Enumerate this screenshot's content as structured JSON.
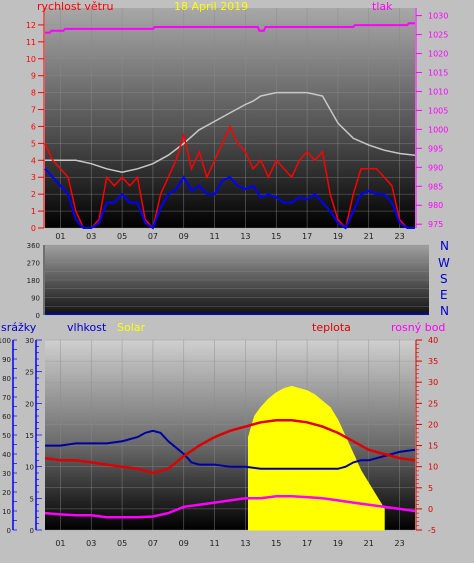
{
  "colors": {
    "background": "#c0c0c0",
    "wind": "#ff0000",
    "wind_avg": "#0000ff",
    "pressure": "#ff00ff",
    "humidity": "#0000a0",
    "solar": "#ffff00",
    "temperature": "#dd0000",
    "dewpoint": "#ff00ff",
    "rain_axis": "#0000ff",
    "grey_series": "#c8c8c8",
    "date": "#ffff00"
  },
  "top_chart": {
    "left_title": "rychlost větru",
    "date": "18 April 2019",
    "right_title": "tlak"
  },
  "mid_chart": {
    "direction_labels": [
      "N",
      "W",
      "S",
      "E",
      "N"
    ]
  },
  "bottom_chart": {
    "rain_label": "srážky",
    "humidity_label": "vlhkost",
    "solar_label": "Solar",
    "temperature_label": "teplota",
    "dewpoint_label": "rosný bod"
  },
  "chart_data": [
    {
      "type": "line",
      "x_ticks": [
        "01",
        "03",
        "05",
        "07",
        "09",
        "11",
        "13",
        "15",
        "17",
        "19",
        "21",
        "23"
      ],
      "xlim": [
        0,
        24
      ],
      "ylim": [
        0,
        13
      ],
      "y_ticks": [
        0,
        1,
        2,
        3,
        4,
        5,
        6,
        7,
        8,
        9,
        10,
        11,
        12
      ],
      "y2lim": [
        974,
        1032
      ],
      "y2_ticks": [
        975,
        980,
        985,
        990,
        995,
        1000,
        1005,
        1010,
        1015,
        1020,
        1025,
        1030
      ],
      "series": [
        {
          "name": "rychlost větru",
          "axis": "left",
          "x": [
            0,
            0.5,
            1,
            1.5,
            2,
            2.5,
            3,
            3.5,
            4,
            4.5,
            5,
            5.5,
            6,
            6.5,
            7,
            7.5,
            8,
            8.5,
            9,
            9.5,
            10,
            10.5,
            11,
            11.5,
            12,
            12.5,
            13,
            13.5,
            14,
            14.5,
            15,
            15.5,
            16,
            16.5,
            17,
            17.5,
            18,
            18.5,
            19,
            19.5,
            20,
            20.5,
            21,
            21.5,
            22,
            22.5,
            23,
            23.5,
            24
          ],
          "values": [
            5,
            4,
            3.5,
            3,
            1,
            0,
            0,
            0.5,
            3,
            2.5,
            3,
            2.5,
            3,
            0.5,
            0,
            2,
            3,
            4,
            5.5,
            3.5,
            4.5,
            3,
            4,
            5,
            6,
            5,
            4.5,
            3.5,
            4,
            3,
            4,
            3.5,
            3,
            4,
            4.5,
            4,
            4.5,
            2,
            0.5,
            0,
            2,
            3.5,
            3.5,
            3.5,
            3,
            2.5,
            0.5,
            0,
            0
          ]
        },
        {
          "name": "",
          "axis": "left",
          "x": [
            0,
            0.5,
            1,
            1.5,
            2,
            2.5,
            3,
            3.5,
            4,
            4.5,
            5,
            5.5,
            6,
            6.5,
            7,
            7.5,
            8,
            8.5,
            9,
            9.5,
            10,
            10.5,
            11,
            11.5,
            12,
            12.5,
            13,
            13.5,
            14,
            14.5,
            15,
            15.5,
            16,
            16.5,
            17,
            17.5,
            18,
            18.5,
            19,
            19.5,
            20,
            20.5,
            21,
            21.5,
            22,
            22.5,
            23,
            23.5,
            24
          ],
          "values": [
            3.5,
            3,
            2.5,
            2,
            0.5,
            0,
            0,
            0.3,
            1.5,
            1.5,
            2,
            1.5,
            1.5,
            0.3,
            0,
            1.2,
            2,
            2.3,
            3,
            2.2,
            2.5,
            2,
            2,
            2.8,
            3,
            2.5,
            2.3,
            2.5,
            1.8,
            2,
            1.8,
            1.5,
            1.5,
            1.8,
            1.7,
            2,
            1.5,
            1,
            0.3,
            0,
            1,
            2,
            2.2,
            2,
            2,
            1.5,
            0.3,
            0,
            0
          ]
        },
        {
          "name": "",
          "axis": "left",
          "x": [
            0,
            1,
            2,
            3,
            4,
            5,
            6,
            7,
            8,
            9,
            10,
            11,
            12,
            13,
            13.5,
            14,
            15,
            16,
            17,
            18,
            18.5,
            19,
            20,
            21,
            22,
            23,
            24
          ],
          "values": [
            4,
            4,
            4,
            3.8,
            3.5,
            3.3,
            3.5,
            3.8,
            4.3,
            5,
            5.8,
            6.3,
            6.8,
            7.3,
            7.5,
            7.8,
            8,
            8,
            8,
            7.8,
            7,
            6.2,
            5.3,
            4.9,
            4.6,
            4.4,
            4.3
          ]
        },
        {
          "name": "tlak",
          "axis": "right",
          "x": [
            0,
            0.3,
            0.4,
            1.2,
            1.3,
            7,
            7.1,
            13.8,
            13.9,
            14.2,
            14.3,
            20,
            20.1,
            23.5,
            23.6,
            24
          ],
          "values": [
            1025.5,
            1025.5,
            1026,
            1026,
            1026.5,
            1026.5,
            1027,
            1027,
            1026,
            1026,
            1027,
            1027,
            1027.5,
            1027.5,
            1028,
            1028
          ]
        }
      ]
    },
    {
      "type": "line",
      "x_ticks": [],
      "xlim": [
        0,
        24
      ],
      "ylim": [
        0,
        360
      ],
      "y_ticks": [
        0,
        45,
        90,
        135,
        180,
        225,
        270,
        315,
        360
      ],
      "y_tick_labels": [
        "0",
        "",
        "90",
        "",
        "180",
        "",
        "270",
        "",
        "360"
      ]
    },
    {
      "type": "line",
      "x_ticks": [
        "01",
        "03",
        "05",
        "07",
        "09",
        "11",
        "13",
        "15",
        "17",
        "19",
        "21",
        "23"
      ],
      "xlim": [
        0,
        24
      ],
      "ylim": [
        -5,
        40
      ],
      "y_ticks": [
        -5,
        0,
        5,
        10,
        15,
        20,
        25,
        30,
        35,
        40
      ],
      "y2_label_ticks": [
        0,
        5,
        10,
        15,
        20,
        25,
        30,
        35,
        40,
        45,
        50,
        55,
        60,
        65,
        70,
        75,
        80,
        85,
        90,
        95,
        100
      ],
      "y2_tick_labels": [
        "0",
        "10",
        "20",
        "30",
        "40",
        "50",
        "60",
        "70",
        "80",
        "90",
        "100"
      ],
      "y3_tick_labels": [
        "0",
        "5",
        "10",
        "15",
        "20",
        "25",
        "30"
      ],
      "series": [
        {
          "name": "vlhkost",
          "axis": "right",
          "x": [
            0,
            1,
            2,
            3,
            4,
            5,
            6,
            6.5,
            7,
            7.5,
            8,
            9,
            9.5,
            10,
            11,
            12,
            13,
            14,
            15,
            16,
            17,
            18,
            19,
            19.5,
            20,
            20.5,
            21,
            22,
            23,
            24
          ],
          "values": [
            15,
            15,
            15.5,
            15.5,
            15.5,
            16,
            17,
            18,
            18.5,
            18,
            16,
            13,
            11,
            10.5,
            10.5,
            10,
            10,
            9.5,
            9.5,
            9.5,
            9.5,
            9.5,
            9.5,
            10,
            11,
            11.5,
            11.5,
            12.5,
            13.5,
            14
          ]
        },
        {
          "name": "Solar",
          "axis": "hidden",
          "x": [
            13.2,
            13.6,
            14,
            14.5,
            15,
            15.5,
            16,
            16.5,
            17,
            17.5,
            18,
            18.5,
            19,
            19.5,
            20,
            20.5,
            21,
            21.5,
            22
          ],
          "values": [
            17,
            22,
            24,
            26,
            27.5,
            28.5,
            29,
            28.5,
            28,
            27,
            25.5,
            24,
            21,
            17,
            13,
            9,
            6,
            3,
            0
          ]
        },
        {
          "name": "teplota",
          "axis": "left",
          "x": [
            0,
            1,
            2,
            3,
            4,
            5,
            6,
            7,
            8,
            9,
            10,
            11,
            12,
            13,
            14,
            15,
            16,
            17,
            18,
            19,
            20,
            21,
            22,
            23,
            24
          ],
          "values": [
            12,
            11.5,
            11.5,
            11,
            10.5,
            10,
            9.5,
            8.5,
            9.5,
            12.5,
            15,
            17,
            18.5,
            19.5,
            20.5,
            21,
            21,
            20.5,
            19.5,
            18,
            16,
            14,
            13,
            12,
            11.5
          ]
        },
        {
          "name": "rosný bod",
          "axis": "left",
          "x": [
            0,
            1,
            2,
            3,
            4,
            5,
            6,
            7,
            8,
            9,
            10,
            11,
            12,
            13,
            14,
            15,
            16,
            17,
            18,
            19,
            20,
            21,
            22,
            23,
            24
          ],
          "values": [
            -1,
            -1.3,
            -1.5,
            -1.5,
            -2,
            -2,
            -2,
            -1.8,
            -1,
            0.5,
            1,
            1.5,
            2,
            2.5,
            2.5,
            3,
            3,
            2.8,
            2.5,
            2,
            1.5,
            1,
            0.5,
            0,
            -0.5
          ]
        }
      ]
    }
  ]
}
